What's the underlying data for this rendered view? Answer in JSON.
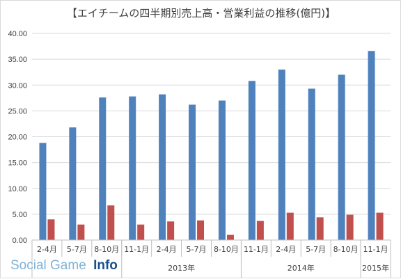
{
  "chart_data": {
    "type": "bar",
    "title": "【エイチームの四半期別売上高・営業利益の推移(億円)】",
    "ylim": [
      0,
      40
    ],
    "yticks": [
      "0.00",
      "5.00",
      "10.00",
      "15.00",
      "20.00",
      "25.00",
      "30.00",
      "35.00",
      "40.00"
    ],
    "categories": [
      "2-4月",
      "5-7月",
      "8-10月",
      "11-1月",
      "2-4月",
      "5-7月",
      "8-10月",
      "11-1月",
      "2-4月",
      "5-7月",
      "8-10月",
      "11-1月"
    ],
    "year_groups": [
      {
        "label": "",
        "start": 0,
        "end": 2
      },
      {
        "label": "2013年",
        "start": 3,
        "end": 6
      },
      {
        "label": "2014年",
        "start": 7,
        "end": 10
      },
      {
        "label": "2015年",
        "start": 11,
        "end": 11
      }
    ],
    "series": [
      {
        "values": [
          18.8,
          21.8,
          27.6,
          27.8,
          28.2,
          26.2,
          27.0,
          30.8,
          33.0,
          29.3,
          32.0,
          36.6
        ],
        "color": "#4f81bd"
      },
      {
        "values": [
          4.0,
          3.0,
          6.7,
          3.0,
          3.6,
          3.8,
          1.0,
          3.7,
          5.3,
          4.4,
          4.9,
          5.3
        ],
        "color": "#c0504d"
      }
    ],
    "grid": true
  },
  "watermark": {
    "part1": "Social Game",
    "part2": "Info",
    "color1": "#7fb3d8",
    "color2": "#1a4f8a"
  }
}
